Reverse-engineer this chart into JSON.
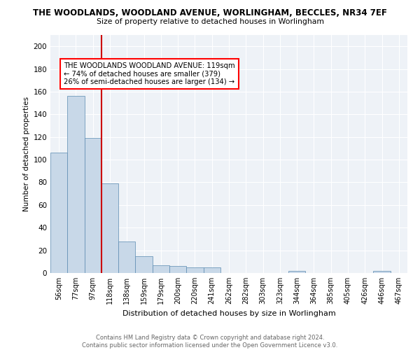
{
  "title1": "THE WOODLANDS, WOODLAND AVENUE, WORLINGHAM, BECCLES, NR34 7EF",
  "title2": "Size of property relative to detached houses in Worlingham",
  "xlabel": "Distribution of detached houses by size in Worlingham",
  "ylabel": "Number of detached properties",
  "categories": [
    "56sqm",
    "77sqm",
    "97sqm",
    "118sqm",
    "138sqm",
    "159sqm",
    "179sqm",
    "200sqm",
    "220sqm",
    "241sqm",
    "262sqm",
    "282sqm",
    "303sqm",
    "323sqm",
    "344sqm",
    "364sqm",
    "385sqm",
    "405sqm",
    "426sqm",
    "446sqm",
    "467sqm"
  ],
  "values": [
    106,
    156,
    119,
    79,
    28,
    15,
    7,
    6,
    5,
    5,
    0,
    0,
    0,
    0,
    2,
    0,
    0,
    0,
    0,
    2,
    0
  ],
  "bar_color": "#c8d8e8",
  "bar_edge_color": "#5a8ab0",
  "annotation_text": "THE WOODLANDS WOODLAND AVENUE: 119sqm\n← 74% of detached houses are smaller (379)\n26% of semi-detached houses are larger (134) →",
  "annotation_box_color": "white",
  "annotation_box_edge_color": "red",
  "red_line_color": "#cc0000",
  "ylim": [
    0,
    210
  ],
  "yticks": [
    0,
    20,
    40,
    60,
    80,
    100,
    120,
    140,
    160,
    180,
    200
  ],
  "background_color": "#eef2f7",
  "footer_text": "Contains HM Land Registry data © Crown copyright and database right 2024.\nContains public sector information licensed under the Open Government Licence v3.0.",
  "grid_color": "white"
}
